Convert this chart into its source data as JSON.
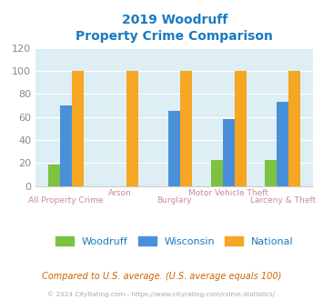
{
  "title_line1": "2019 Woodruff",
  "title_line2": "Property Crime Comparison",
  "title_color": "#1a7abf",
  "categories": [
    "All Property Crime",
    "Arson",
    "Burglary",
    "Motor Vehicle Theft",
    "Larceny & Theft"
  ],
  "woodruff": [
    19,
    0,
    0,
    23,
    23
  ],
  "wisconsin": [
    70,
    0,
    65,
    58,
    73
  ],
  "national": [
    100,
    100,
    100,
    100,
    100
  ],
  "color_woodruff": "#7dc242",
  "color_wisconsin": "#4a90d9",
  "color_national": "#f5a623",
  "ylim": [
    0,
    120
  ],
  "yticks": [
    0,
    20,
    40,
    60,
    80,
    100,
    120
  ],
  "plot_bg": "#ddeef4",
  "footer_text": "Compared to U.S. average. (U.S. average equals 100)",
  "footer_color": "#cc6600",
  "copyright_text": "© 2024 CityRating.com - https://www.cityrating.com/crime-statistics/",
  "copyright_color": "#aaaaaa",
  "legend_labels": [
    "Woodruff",
    "Wisconsin",
    "National"
  ],
  "xlabel_color": "#cc8899",
  "ylabel_color": "#888888",
  "bar_width": 0.22
}
